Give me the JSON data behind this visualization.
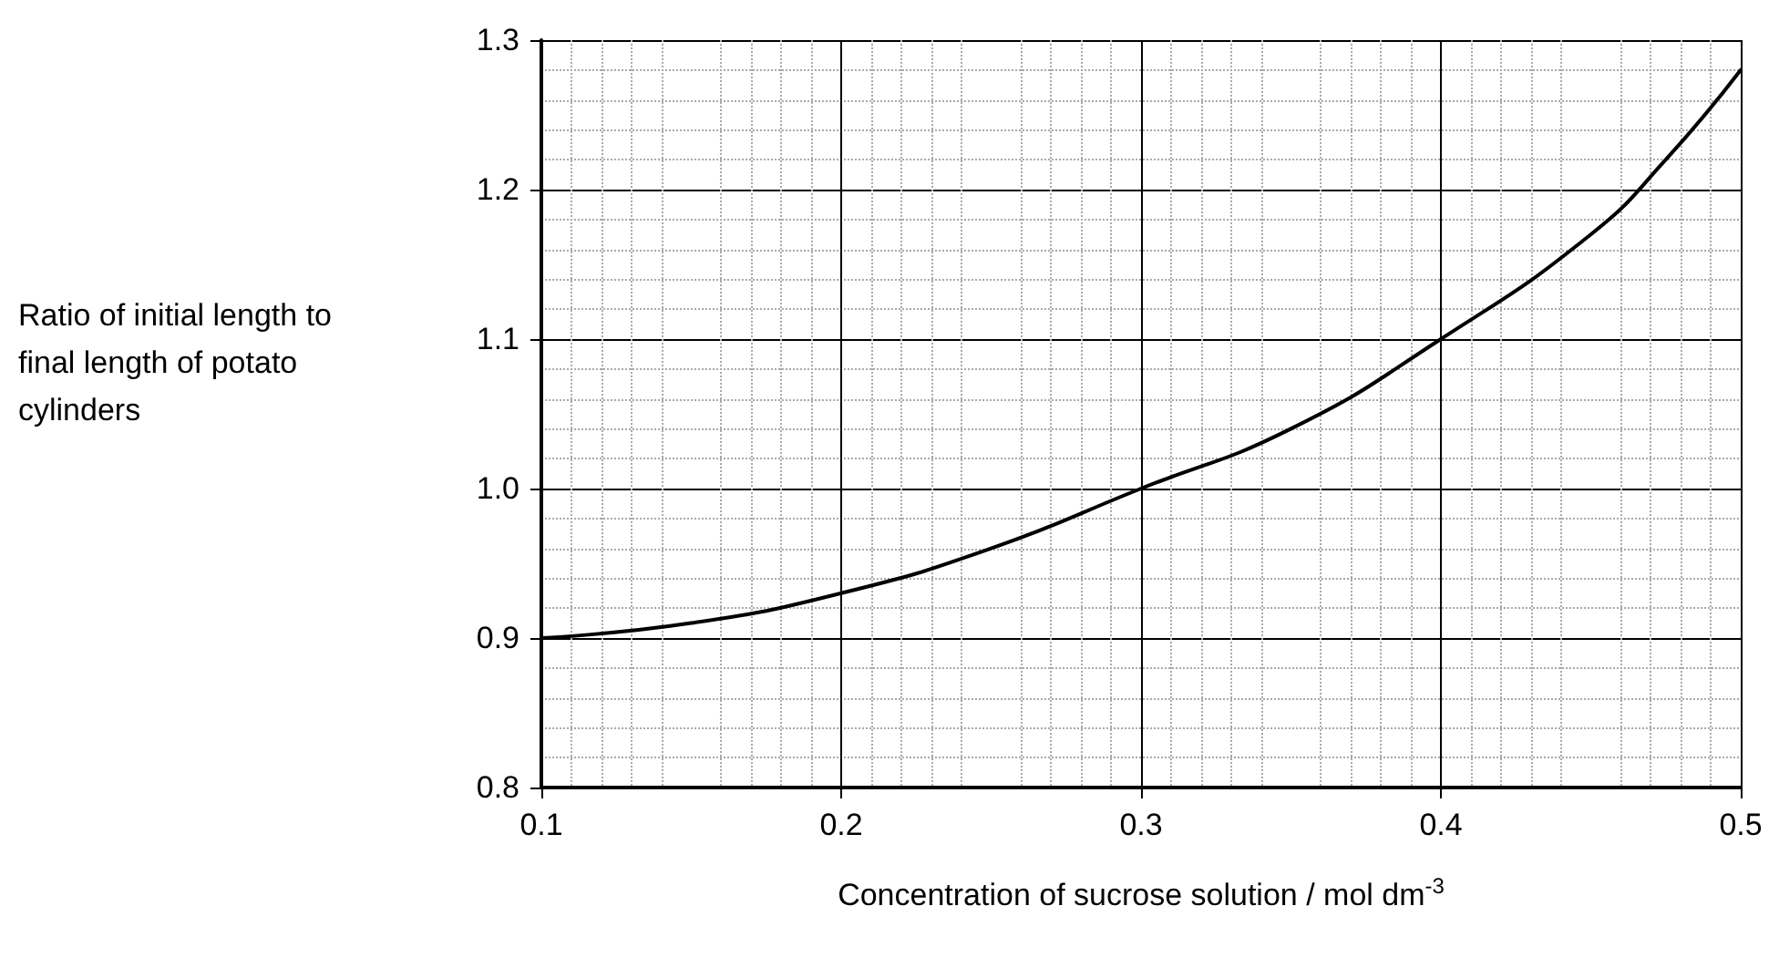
{
  "chart_data": {
    "type": "line",
    "xlabel": "Concentration of sucrose solution / mol dm$^{-3}$",
    "ylabel": "Ratio of initial length to final length of potato cylinders",
    "x": [
      0.1,
      0.15,
      0.2,
      0.25,
      0.3,
      0.35,
      0.4,
      0.45,
      0.475,
      0.5
    ],
    "series": [
      {
        "color": "#000000",
        "values": [
          0.9,
          0.91,
          0.93,
          0.96,
          1.0,
          1.04,
          1.1,
          1.17,
          1.22,
          1.28
        ]
      }
    ],
    "xlim": [
      0.1,
      0.5
    ],
    "xticks": [
      0.1,
      0.2,
      0.3,
      0.4,
      0.5
    ],
    "ylim": [
      0.8,
      1.3
    ],
    "yticks": [
      0.8,
      0.9,
      {
        "value": 1.0,
        "label": "1.0"
      },
      1.1,
      1.2,
      1.3
    ],
    "grid": true,
    "marker": "none",
    "line_style": "solid"
  }
}
